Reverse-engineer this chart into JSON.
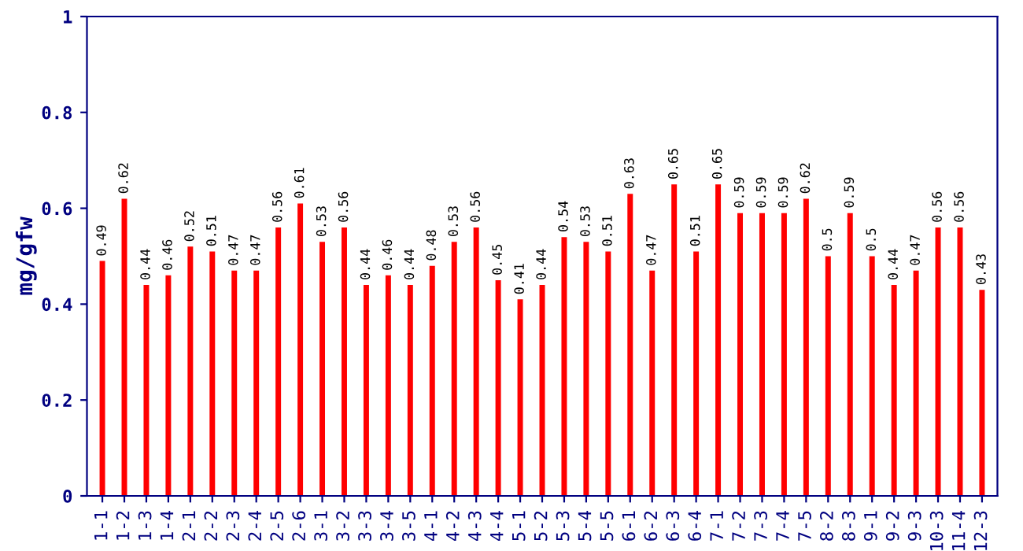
{
  "chart_data": {
    "type": "bar",
    "ylabel": "mg/gfw",
    "categories": [
      "1-1",
      "1-2",
      "1-3",
      "1-4",
      "2-1",
      "2-2",
      "2-3",
      "2-4",
      "2-5",
      "2-6",
      "3-1",
      "3-2",
      "3-3",
      "3-4",
      "3-5",
      "4-1",
      "4-2",
      "4-3",
      "4-4",
      "5-1",
      "5-2",
      "5-3",
      "5-4",
      "5-5",
      "6-1",
      "6-2",
      "6-3",
      "6-4",
      "7-1",
      "7-2",
      "7-3",
      "7-4",
      "7-5",
      "8-2",
      "8-3",
      "9-1",
      "9-2",
      "9-3",
      "10-3",
      "11-4",
      "12-3"
    ],
    "values": [
      0.49,
      0.62,
      0.44,
      0.46,
      0.52,
      0.51,
      0.47,
      0.47,
      0.56,
      0.61,
      0.53,
      0.56,
      0.44,
      0.46,
      0.44,
      0.48,
      0.53,
      0.56,
      0.45,
      0.41,
      0.44,
      0.54,
      0.53,
      0.51,
      0.63,
      0.47,
      0.65,
      0.51,
      0.65,
      0.59,
      0.59,
      0.59,
      0.62,
      0.5,
      0.59,
      0.5,
      0.44,
      0.47,
      0.56,
      0.56,
      0.43
    ],
    "color": "#ff0000",
    "data_labels": true,
    "ylim": [
      0,
      1
    ],
    "yticks": [
      0,
      {
        "value": 0.2,
        "label": "0.2"
      },
      {
        "value": 0.4,
        "label": "0.4"
      },
      {
        "value": 0.6,
        "label": "0.6"
      },
      {
        "value": 0.8,
        "label": "0.8"
      },
      1
    ],
    "grid": false,
    "legend": false
  }
}
